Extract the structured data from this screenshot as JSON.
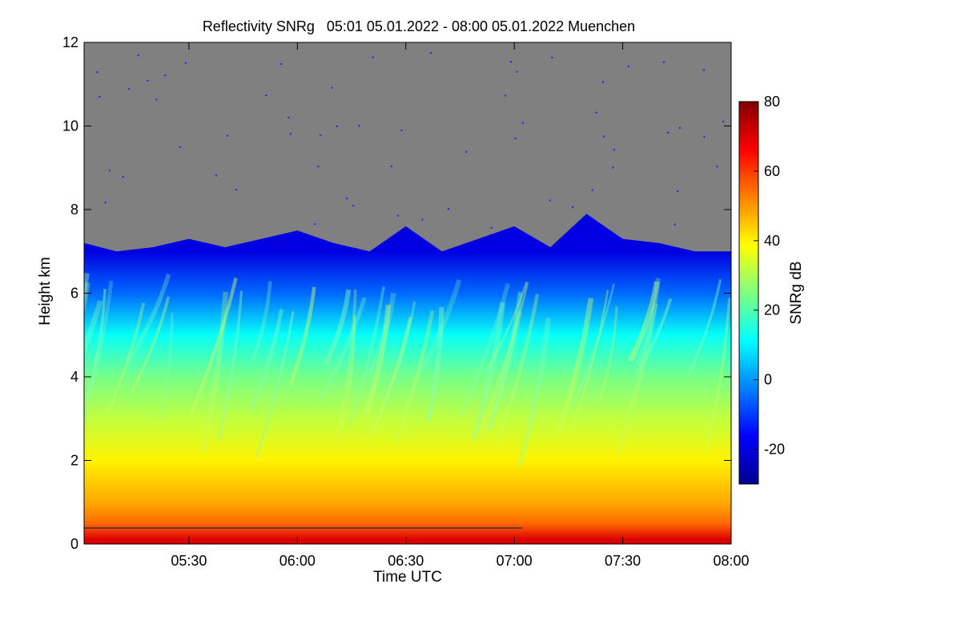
{
  "chart_data": {
    "type": "heatmap",
    "title": "Reflectivity SNRg   05:01 05.01.2022 - 08:00 05.01.2022 Muenchen",
    "xlabel": "Time UTC",
    "ylabel": "Height km",
    "x_range": [
      "05:01",
      "08:00"
    ],
    "xticks": [
      "05:30",
      "06:00",
      "06:30",
      "07:00",
      "07:30",
      "08:00"
    ],
    "ylim": [
      0,
      12
    ],
    "yticks": [
      "0",
      "2",
      "4",
      "6",
      "8",
      "10",
      "12"
    ],
    "colorbar": {
      "label": "SNRg dB",
      "range": [
        -30,
        80
      ],
      "ticks": [
        "-20",
        "0",
        "20",
        "40",
        "60",
        "80"
      ],
      "colormap": [
        "#00008f",
        "#0000ff",
        "#0080ff",
        "#00ffff",
        "#80ff80",
        "#ffff00",
        "#ff8000",
        "#ff0000",
        "#800000"
      ]
    },
    "no_signal_color": "#808080",
    "echo_top_km": [
      {
        "time": "05:01",
        "height": 7.2
      },
      {
        "time": "05:10",
        "height": 7.0
      },
      {
        "time": "05:20",
        "height": 7.1
      },
      {
        "time": "05:30",
        "height": 7.3
      },
      {
        "time": "05:40",
        "height": 7.1
      },
      {
        "time": "05:50",
        "height": 7.3
      },
      {
        "time": "06:00",
        "height": 7.5
      },
      {
        "time": "06:10",
        "height": 7.2
      },
      {
        "time": "06:20",
        "height": 7.0
      },
      {
        "time": "06:30",
        "height": 7.6
      },
      {
        "time": "06:40",
        "height": 7.0
      },
      {
        "time": "06:50",
        "height": 7.3
      },
      {
        "time": "07:00",
        "height": 7.6
      },
      {
        "time": "07:10",
        "height": 7.1
      },
      {
        "time": "07:20",
        "height": 7.9
      },
      {
        "time": "07:30",
        "height": 7.3
      },
      {
        "time": "07:40",
        "height": 7.2
      },
      {
        "time": "07:50",
        "height": 7.0
      },
      {
        "time": "08:00",
        "height": 7.0
      }
    ],
    "snr_profile_db": [
      {
        "height": 0.1,
        "snr": 70
      },
      {
        "height": 0.5,
        "snr": 55
      },
      {
        "height": 1.0,
        "snr": 48
      },
      {
        "height": 2.0,
        "snr": 40
      },
      {
        "height": 3.0,
        "snr": 32
      },
      {
        "height": 4.0,
        "snr": 24
      },
      {
        "height": 5.0,
        "snr": 12
      },
      {
        "height": 6.0,
        "snr": -5
      },
      {
        "height": 7.0,
        "snr": -20
      }
    ]
  }
}
